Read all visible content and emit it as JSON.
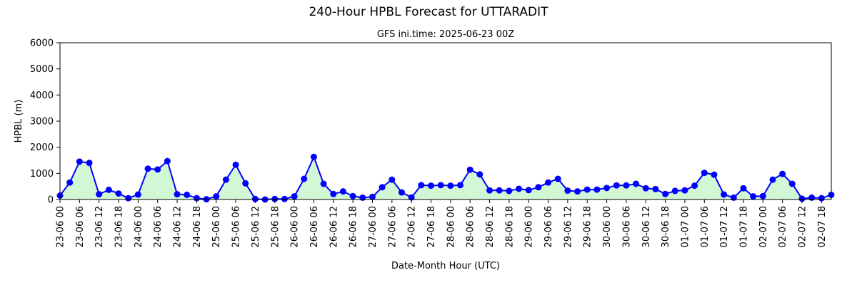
{
  "chart_data": {
    "type": "line",
    "title": "240-Hour HPBL Forecast for UTTARADIT",
    "subtitle": "GFS ini.time: 2025-06-23 00Z",
    "xlabel": "Date-Month Hour (UTC)",
    "ylabel": "HPBL (m)",
    "ylim": [
      0,
      6000
    ],
    "yticks": [
      0,
      1000,
      2000,
      3000,
      4000,
      5000,
      6000
    ],
    "grid": false,
    "x_step_hours": 3,
    "x_tick_every": 2,
    "x_tick_labels": [
      "23-06 00",
      "23-06 06",
      "23-06 12",
      "23-06 18",
      "24-06 00",
      "24-06 06",
      "24-06 12",
      "24-06 18",
      "25-06 00",
      "25-06 06",
      "25-06 12",
      "25-06 18",
      "26-06 00",
      "26-06 06",
      "26-06 12",
      "26-06 18",
      "27-06 00",
      "27-06 06",
      "27-06 12",
      "27-06 18",
      "28-06 00",
      "28-06 06",
      "28-06 12",
      "28-06 18",
      "29-06 00",
      "29-06 06",
      "29-06 12",
      "29-06 18",
      "30-06 00",
      "30-06 06",
      "30-06 12",
      "30-06 18",
      "01-07 00",
      "01-07 06",
      "01-07 12",
      "01-07 18",
      "02-07 00",
      "02-07 06",
      "02-07 12",
      "02-07 18"
    ],
    "series": [
      {
        "line_color": "#0000ff",
        "marker_color": "#0000ff",
        "fill_color": "#d2f7d5",
        "values": [
          150,
          650,
          1450,
          1400,
          200,
          370,
          230,
          50,
          190,
          1180,
          1150,
          1470,
          200,
          180,
          50,
          10,
          120,
          760,
          1330,
          620,
          20,
          0,
          20,
          20,
          120,
          790,
          1630,
          600,
          210,
          310,
          130,
          70,
          100,
          470,
          760,
          270,
          80,
          550,
          530,
          550,
          530,
          550,
          1140,
          960,
          350,
          350,
          330,
          410,
          360,
          470,
          650,
          790,
          340,
          310,
          380,
          380,
          440,
          540,
          540,
          600,
          430,
          400,
          210,
          330,
          350,
          530,
          1020,
          950,
          190,
          70,
          430,
          120,
          130,
          760,
          980,
          600,
          30,
          70,
          50,
          180
        ]
      }
    ]
  }
}
